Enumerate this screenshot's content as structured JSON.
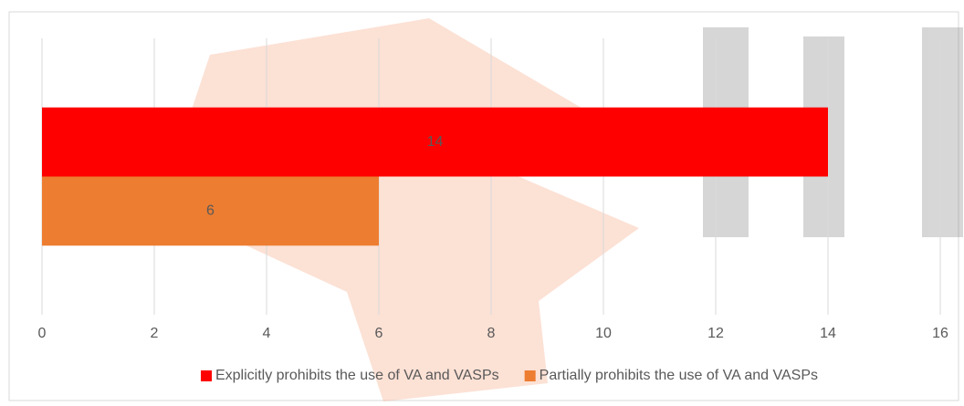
{
  "chart_data": {
    "type": "bar",
    "orientation": "horizontal",
    "categories": [
      null
    ],
    "series": [
      {
        "name": "Explicitly prohibits the use of VA and VASPs",
        "color": "#ff0000",
        "values": [
          14
        ]
      },
      {
        "name": "Partially prohibits the use of VA and VASPs",
        "color": "#ed7d31",
        "values": [
          6
        ]
      }
    ],
    "xlim": [
      0,
      16
    ],
    "xticks": [
      0,
      2,
      4,
      6,
      8,
      10,
      12,
      14,
      16
    ],
    "grid": true,
    "legend": "bottom"
  }
}
